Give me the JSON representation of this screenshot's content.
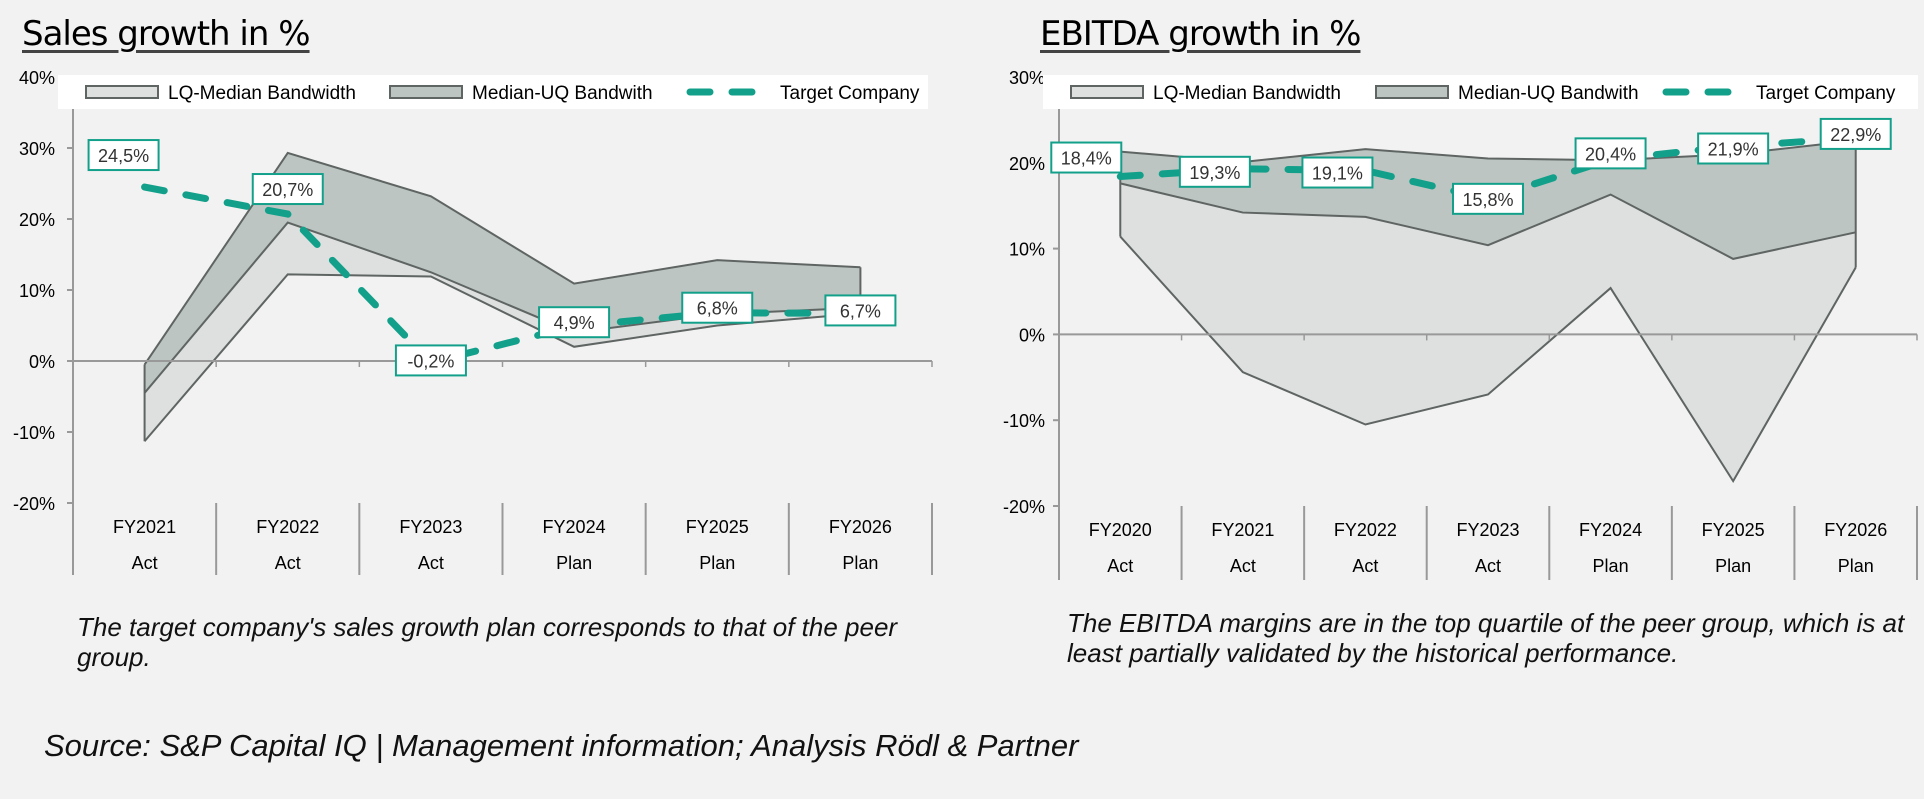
{
  "colors": {
    "background": "#f2f2f2",
    "lq_band": "#dde0df",
    "uq_band": "#bcc5c2",
    "band_stroke": "#5f6563",
    "target": "#13a08a",
    "axis": "#999999"
  },
  "legend": {
    "lq": "LQ-Median Bandwidth",
    "uq": "Median-UQ Bandwith",
    "target": "Target Company"
  },
  "footer": {
    "source": "Source: S&P Capital IQ | Management information; Analysis Rödl & Partner"
  },
  "chart_data": [
    {
      "id": "sales",
      "type": "area",
      "title": "Sales growth in %",
      "caption": "The target company's sales growth plan corresponds to that of the peer group.",
      "categories": [
        "FY2021",
        "FY2022",
        "FY2023",
        "FY2024",
        "FY2025",
        "FY2026"
      ],
      "category_sub": [
        "Act",
        "Act",
        "Act",
        "Plan",
        "Plan",
        "Plan"
      ],
      "ylim": [
        -20,
        40
      ],
      "yticks": [
        40,
        30,
        20,
        10,
        0,
        -10,
        -20
      ],
      "ytick_labels": [
        "40%",
        "30%",
        "20%",
        "10%",
        "0%",
        "-10%",
        "-20%"
      ],
      "legend_position": "top",
      "series": [
        {
          "name": "Lower Quartile",
          "values": [
            -11.3,
            12.2,
            11.9,
            2.0,
            5.0,
            6.7
          ]
        },
        {
          "name": "Median",
          "values": [
            -4.5,
            19.5,
            12.5,
            4.0,
            6.6,
            7.5
          ]
        },
        {
          "name": "Upper Quartile",
          "values": [
            -0.5,
            29.3,
            23.2,
            10.9,
            14.2,
            13.2
          ]
        },
        {
          "name": "Target Company",
          "values": [
            24.5,
            20.7,
            -0.2,
            4.9,
            6.8,
            6.7
          ],
          "labels": [
            "24,5%",
            "20,7%",
            "-0,2%",
            "4,9%",
            "6,8%",
            "6,7%"
          ]
        }
      ]
    },
    {
      "id": "ebitda",
      "type": "area",
      "title": "EBITDA growth in %",
      "caption": "The EBITDA margins are in the top quartile of the peer group, which is at least partially validated by the historical performance.",
      "categories": [
        "FY2020",
        "FY2021",
        "FY2022",
        "FY2023",
        "FY2024",
        "FY2025",
        "FY2026"
      ],
      "category_sub": [
        "Act",
        "Act",
        "Act",
        "Act",
        "Plan",
        "Plan",
        "Plan"
      ],
      "ylim": [
        -20,
        30
      ],
      "yticks": [
        30,
        20,
        10,
        0,
        -10,
        -20
      ],
      "ytick_labels": [
        "30%",
        "20%",
        "10%",
        "0%",
        "-10%",
        "-20%"
      ],
      "legend_position": "top",
      "series": [
        {
          "name": "Lower Quartile",
          "values": [
            11.4,
            -4.4,
            -10.5,
            -7.0,
            5.4,
            -17.1,
            7.8
          ]
        },
        {
          "name": "Median",
          "values": [
            17.6,
            14.2,
            13.7,
            10.4,
            16.3,
            8.8,
            11.9
          ]
        },
        {
          "name": "Upper Quartile",
          "values": [
            21.3,
            20.1,
            21.6,
            20.5,
            20.3,
            21.0,
            22.6
          ]
        },
        {
          "name": "Target Company",
          "values": [
            18.4,
            19.3,
            19.1,
            15.8,
            20.4,
            21.9,
            22.9
          ],
          "labels": [
            "18,4%",
            "19,3%",
            "19,1%",
            "15,8%",
            "20,4%",
            "21,9%",
            "22,9%"
          ]
        }
      ]
    }
  ]
}
